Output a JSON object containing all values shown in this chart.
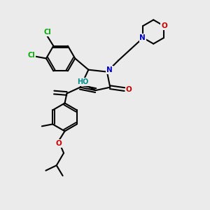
{
  "bg_color": "#ebebeb",
  "atom_colors": {
    "C": "#000000",
    "N": "#0000cc",
    "O": "#cc0000",
    "Cl": "#00aa00",
    "HO": "#008b8b"
  },
  "bond_color": "#000000",
  "bond_width": 1.5
}
